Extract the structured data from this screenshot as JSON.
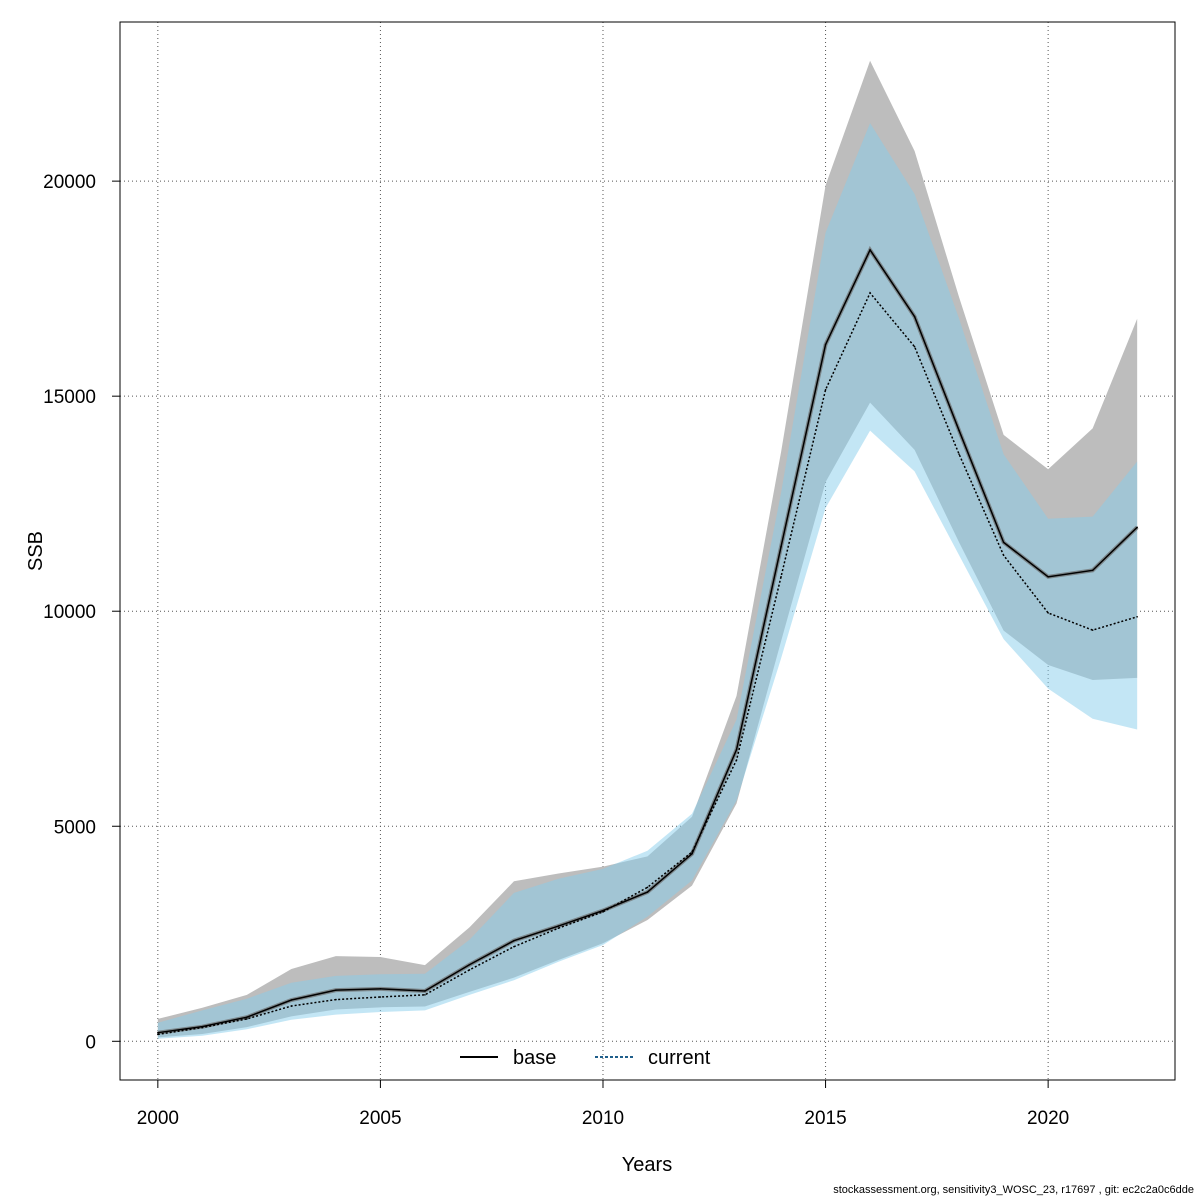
{
  "chart_data": {
    "type": "line",
    "xlabel": "Years",
    "ylabel": "SSB",
    "xlim": [
      1999.15,
      2022.85
    ],
    "ylim": [
      -900,
      23700
    ],
    "x_ticks": [
      2000,
      2005,
      2010,
      2015,
      2020
    ],
    "y_ticks": [
      0,
      5000,
      10000,
      15000,
      20000
    ],
    "grid": true,
    "legend_position": "bottom-center",
    "x": [
      2000,
      2001,
      2002,
      2003,
      2004,
      2005,
      2006,
      2007,
      2008,
      2009,
      2010,
      2011,
      2012,
      2013,
      2014,
      2015,
      2016,
      2017,
      2018,
      2019,
      2020,
      2021,
      2022
    ],
    "series": [
      {
        "name": "base",
        "line_style": "solid",
        "color": "#000000",
        "band_color": "#bdbdbd",
        "values": [
          200,
          340,
          560,
          960,
          1190,
          1220,
          1170,
          1780,
          2340,
          2680,
          3040,
          3470,
          4360,
          6780,
          11500,
          16200,
          18400,
          16850,
          14200,
          11600,
          10800,
          10950,
          11950
        ],
        "lower": [
          90,
          170,
          330,
          580,
          740,
          790,
          810,
          1150,
          1480,
          1890,
          2280,
          2820,
          3620,
          5530,
          9300,
          13000,
          14850,
          13750,
          11600,
          9550,
          8750,
          8400,
          8450
        ],
        "upper": [
          520,
          780,
          1080,
          1680,
          1980,
          1960,
          1770,
          2650,
          3720,
          3900,
          4060,
          4300,
          5220,
          8030,
          13700,
          19900,
          22800,
          20700,
          17300,
          14100,
          13300,
          14250,
          16800
        ]
      },
      {
        "name": "current",
        "line_style": "dotted",
        "color": "#000000",
        "band_color": "#87ceeb",
        "values": [
          160,
          320,
          520,
          820,
          970,
          1030,
          1080,
          1660,
          2200,
          2630,
          3010,
          3580,
          4400,
          6540,
          10800,
          15150,
          17400,
          16150,
          13650,
          11300,
          9960,
          9560,
          9870
        ],
        "lower": [
          60,
          130,
          280,
          500,
          620,
          680,
          720,
          1080,
          1420,
          1850,
          2240,
          2900,
          3740,
          5600,
          8900,
          12400,
          14200,
          13250,
          11300,
          9350,
          8200,
          7500,
          7250
        ],
        "upper": [
          430,
          720,
          990,
          1360,
          1520,
          1560,
          1570,
          2360,
          3450,
          3780,
          4010,
          4430,
          5290,
          7480,
          12750,
          18800,
          21350,
          19700,
          16800,
          13650,
          12150,
          12200,
          13480
        ]
      }
    ]
  },
  "footer_text": "stockassessment.org, sensitivity3_WOSC_23, r17697 , git: ec2c2a0c6dde"
}
